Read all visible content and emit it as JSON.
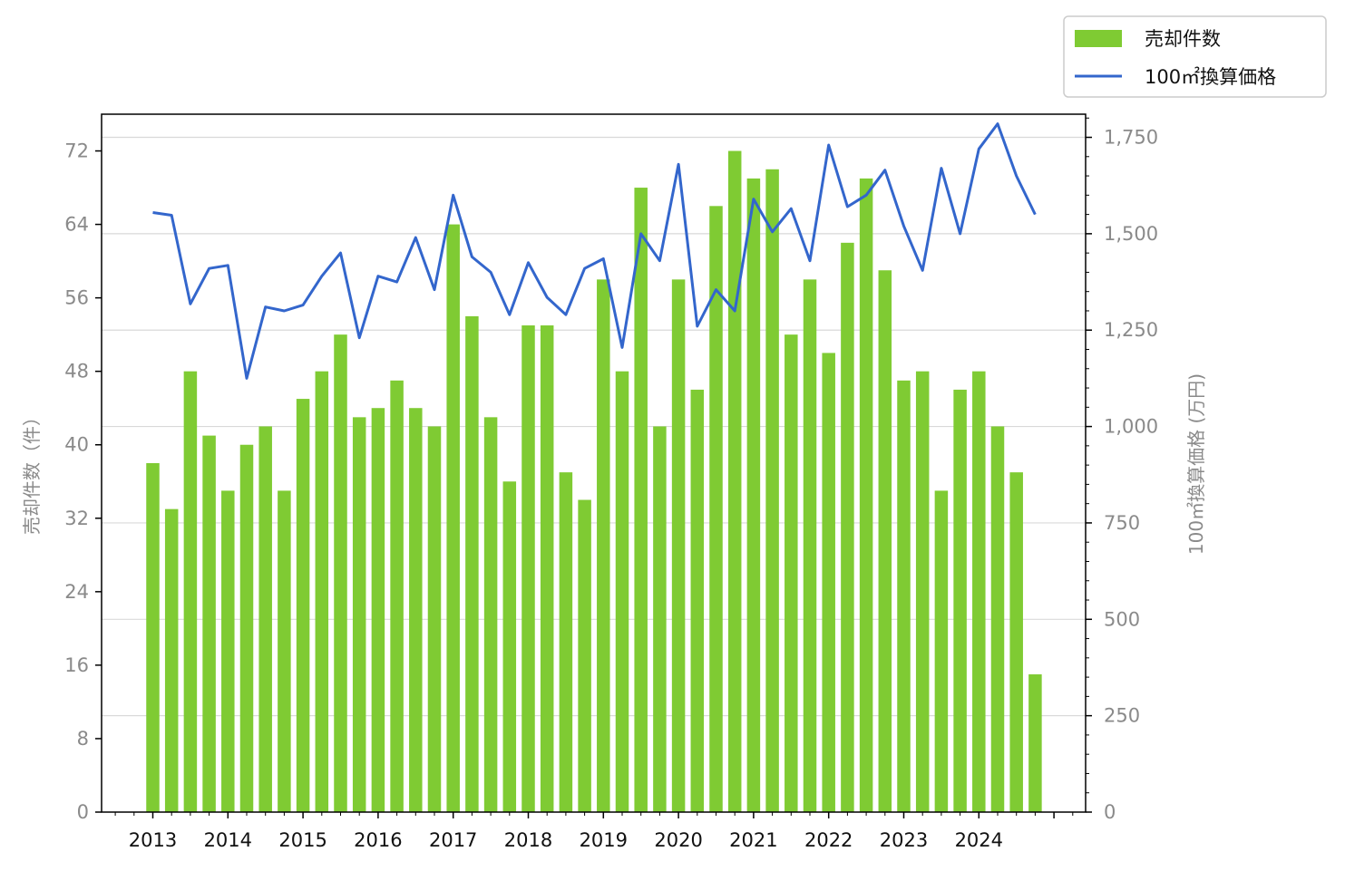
{
  "chart_data": {
    "type": "bar",
    "title": "",
    "xlabel": "",
    "ylabel": "売却件数（件）",
    "y2label": "100㎡換算価格 (万円)",
    "ylim": [
      0,
      76
    ],
    "y2lim": [
      0,
      1810
    ],
    "xticks": [
      "2013",
      "2014",
      "2015",
      "2016",
      "2017",
      "2018",
      "2019",
      "2020",
      "2021",
      "2022",
      "2023",
      "2024"
    ],
    "yticks": [
      "0",
      "8",
      "16",
      "24",
      "32",
      "40",
      "48",
      "56",
      "64",
      "72"
    ],
    "y2ticks": [
      "0",
      "250",
      "500",
      "750",
      "1,000",
      "1,250",
      "1,500",
      "1,750"
    ],
    "grid": "horizontal (right axis)",
    "legend_position": "top-right",
    "legend": [
      "売却件数",
      "100㎡換算価格"
    ],
    "colors": {
      "bar": "#7fcb33",
      "line": "#3366cc"
    },
    "quarters": [
      "2013Q1",
      "2013Q2",
      "2013Q3",
      "2013Q4",
      "2014Q1",
      "2014Q2",
      "2014Q3",
      "2014Q4",
      "2015Q1",
      "2015Q2",
      "2015Q3",
      "2015Q4",
      "2016Q1",
      "2016Q2",
      "2016Q3",
      "2016Q4",
      "2017Q1",
      "2017Q2",
      "2017Q3",
      "2017Q4",
      "2018Q1",
      "2018Q2",
      "2018Q3",
      "2018Q4",
      "2019Q1",
      "2019Q2",
      "2019Q3",
      "2019Q4",
      "2020Q1",
      "2020Q2",
      "2020Q3",
      "2020Q4",
      "2021Q1",
      "2021Q2",
      "2021Q3",
      "2021Q4",
      "2022Q1",
      "2022Q2",
      "2022Q3",
      "2022Q4",
      "2023Q1",
      "2023Q2",
      "2023Q3",
      "2023Q4",
      "2024Q1",
      "2024Q2",
      "2024Q3",
      "2024Q4"
    ],
    "series": [
      {
        "name": "売却件数",
        "type": "bar",
        "axis": "left",
        "values": [
          38,
          33,
          48,
          41,
          35,
          40,
          42,
          35,
          45,
          48,
          52,
          43,
          44,
          47,
          44,
          42,
          64,
          54,
          43,
          36,
          53,
          53,
          37,
          34,
          58,
          48,
          68,
          42,
          58,
          46,
          66,
          72,
          69,
          70,
          52,
          58,
          50,
          62,
          69,
          59,
          47,
          48,
          35,
          46,
          48,
          42,
          37,
          15
        ]
      },
      {
        "name": "100㎡換算価格",
        "type": "line",
        "axis": "right",
        "values": [
          1555,
          1548,
          1318,
          1410,
          1418,
          1125,
          1310,
          1300,
          1315,
          1390,
          1450,
          1230,
          1390,
          1375,
          1490,
          1355,
          1600,
          1440,
          1400,
          1290,
          1425,
          1335,
          1290,
          1410,
          1435,
          1205,
          1500,
          1430,
          1680,
          1260,
          1355,
          1300,
          1590,
          1505,
          1565,
          1430,
          1730,
          1570,
          1600,
          1665,
          1520,
          1405,
          1670,
          1500,
          1720,
          1785,
          1650,
          1550
        ]
      }
    ]
  }
}
